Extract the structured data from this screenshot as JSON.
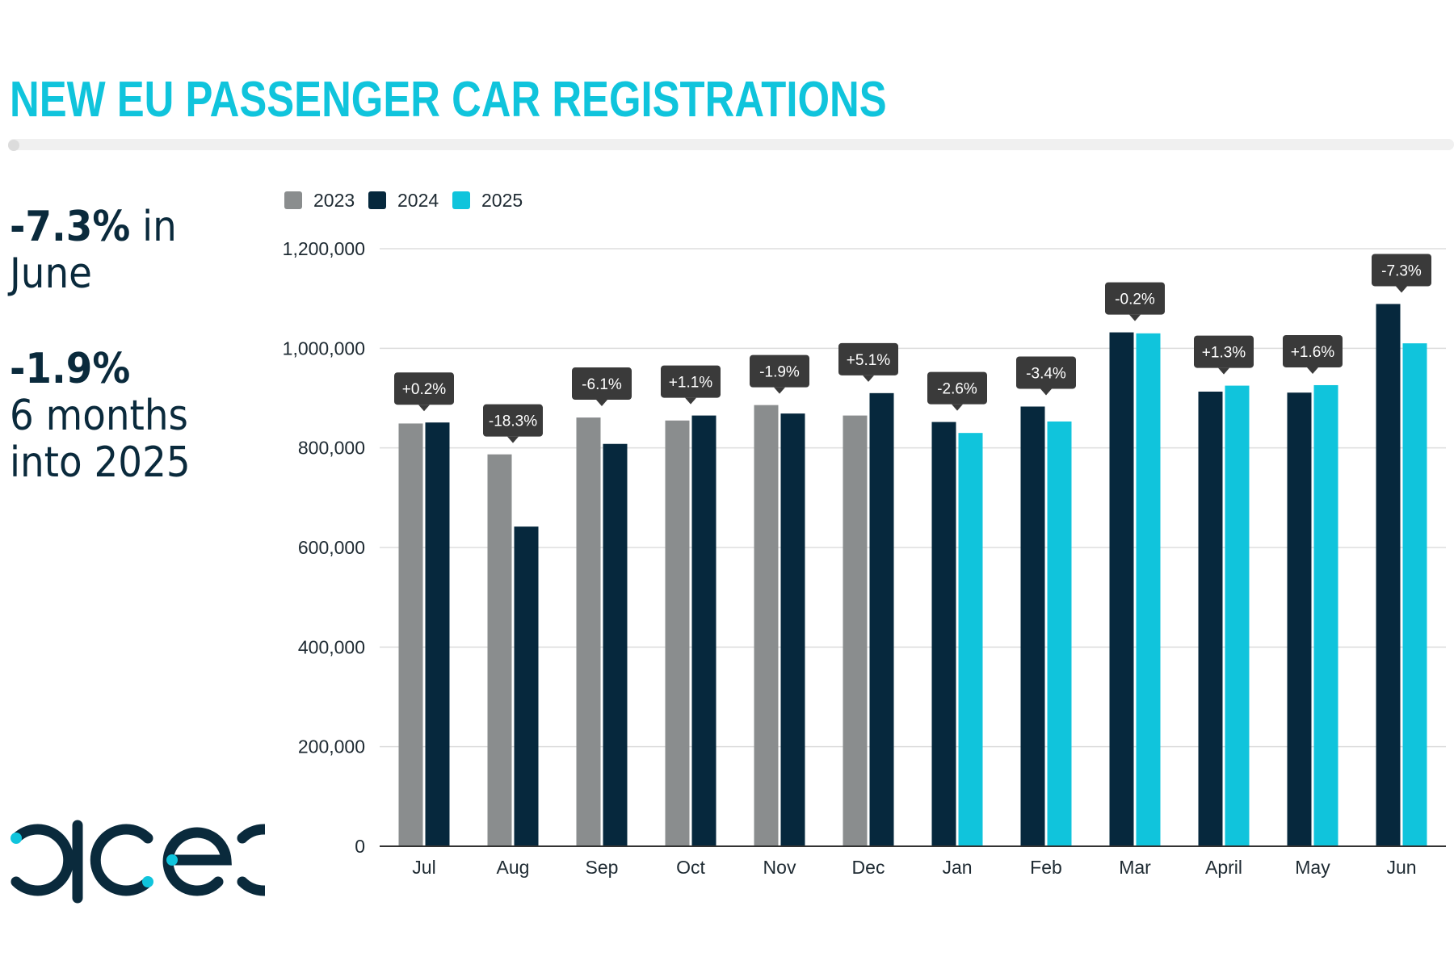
{
  "title": "NEW EU PASSENGER CAR REGISTRATIONS",
  "stats": {
    "june_value": "-7.3%",
    "june_suffix": " in",
    "june_line2": "June",
    "ytd_value": "-1.9%",
    "ytd_line2": "6 months",
    "ytd_line3": "into 2025"
  },
  "logo": {
    "text": "acea",
    "color": "#0a2a3c",
    "dot_color": "#10c4dc"
  },
  "colors": {
    "s2023": "#8a8d8e",
    "s2024": "#06283d",
    "s2025": "#10c4dc",
    "badge": "#3a3a3a"
  },
  "chart_data": {
    "type": "bar",
    "title": "",
    "xlabel": "",
    "ylabel": "",
    "ylim": [
      0,
      1200000
    ],
    "yticks": [
      0,
      200000,
      400000,
      600000,
      800000,
      1000000,
      1200000
    ],
    "ytick_labels": [
      "0",
      "200,000",
      "400,000",
      "600,000",
      "800,000",
      "1,000,000",
      "1,200,000"
    ],
    "grid": true,
    "legend_position": "top-left",
    "categories": [
      "Jul",
      "Aug",
      "Sep",
      "Oct",
      "Nov",
      "Dec",
      "Jan",
      "Feb",
      "Mar",
      "April",
      "May",
      "Jun"
    ],
    "series": [
      {
        "name": "2023",
        "color": "#8a8d8e",
        "values": [
          849000,
          787000,
          861000,
          855000,
          886000,
          865000,
          null,
          null,
          null,
          null,
          null,
          null
        ]
      },
      {
        "name": "2024",
        "color": "#06283d",
        "values": [
          851000,
          642000,
          808000,
          865000,
          869000,
          910000,
          852000,
          883000,
          1032000,
          913000,
          911000,
          1089000
        ]
      },
      {
        "name": "2025",
        "color": "#10c4dc",
        "values": [
          null,
          null,
          null,
          null,
          null,
          null,
          830000,
          853000,
          1030000,
          925000,
          926000,
          1010000
        ]
      }
    ],
    "annotations": [
      "+0.2%",
      "-18.3%",
      "-6.1%",
      "+1.1%",
      "-1.9%",
      "+5.1%",
      "-2.6%",
      "-3.4%",
      "-0.2%",
      "+1.3%",
      "+1.6%",
      "-7.3%"
    ]
  }
}
